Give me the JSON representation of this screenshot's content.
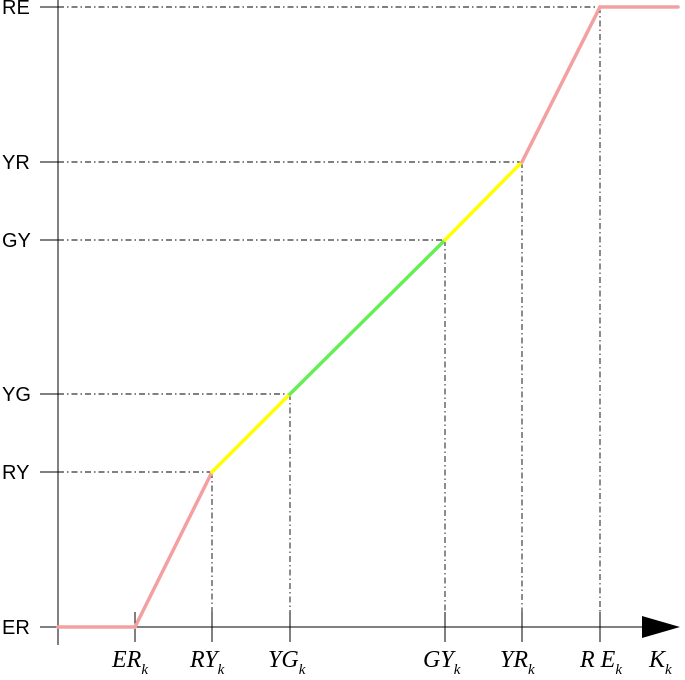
{
  "chart_data": {
    "type": "line",
    "y_levels": [
      "ER",
      "RY",
      "YG",
      "GY",
      "YR",
      "RE"
    ],
    "x_ticks": [
      {
        "main": "ER",
        "sub": "k"
      },
      {
        "main": "RY",
        "sub": "k"
      },
      {
        "main": "YG",
        "sub": "k"
      },
      {
        "main": "GY",
        "sub": "k"
      },
      {
        "main": "YR",
        "sub": "k"
      },
      {
        "main": "R E",
        "sub": "k"
      }
    ],
    "x_axis_label": {
      "main": "K",
      "sub": "k"
    },
    "segments": [
      {
        "from": "ER",
        "to": "ER",
        "color": "#f4a0a0"
      },
      {
        "from": "ER",
        "to": "RY",
        "color": "#f4a0a0"
      },
      {
        "from": "RY",
        "to": "YG",
        "color": "#ffff00"
      },
      {
        "from": "YG",
        "to": "GY",
        "color": "#66ee55"
      },
      {
        "from": "GY",
        "to": "YR",
        "color": "#ffff00"
      },
      {
        "from": "YR",
        "to": "RE",
        "color": "#f4a0a0"
      },
      {
        "from": "RE",
        "to": "RE",
        "color": "#f4a0a0"
      }
    ],
    "colors": {
      "red": "#f4a0a0",
      "yellow": "#ffff00",
      "green": "#66ee55",
      "axis": "#000000"
    }
  }
}
